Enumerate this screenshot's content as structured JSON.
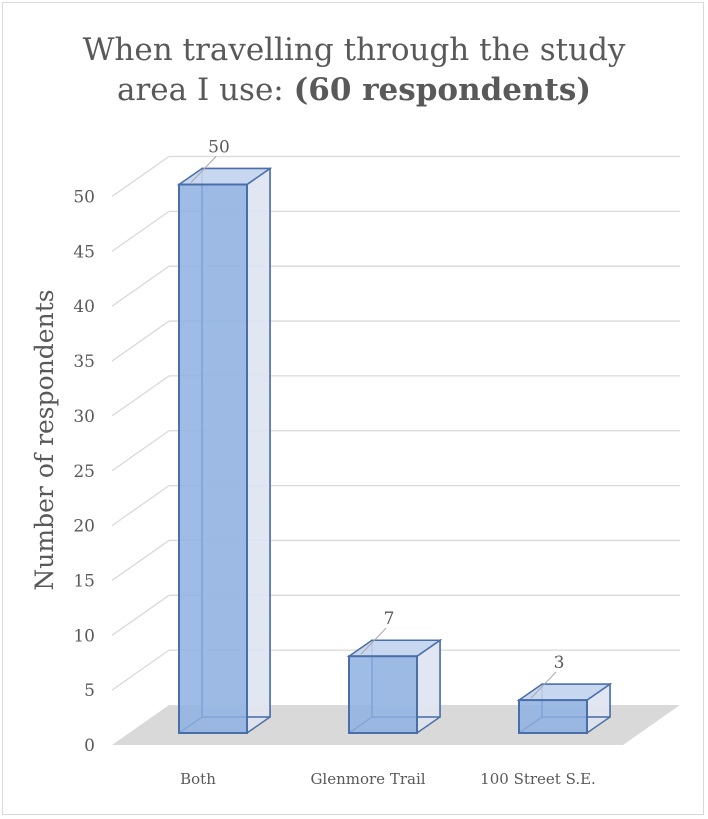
{
  "chart_data": {
    "type": "bar",
    "title_line1": "When travelling through the study",
    "title_line2_plain": "area I use: ",
    "title_line2_bold": "(60 respondents)",
    "xlabel": "",
    "ylabel": "Number of respondents",
    "categories": [
      "Both",
      "Glenmore Trail",
      "100 Street S.E."
    ],
    "values": [
      50,
      7,
      3
    ],
    "ylim": [
      0,
      50
    ],
    "yticks": [
      0,
      5,
      10,
      15,
      20,
      25,
      30,
      35,
      40,
      45,
      50
    ],
    "grid": true,
    "three_d": true,
    "bar_color": "#8db0e0",
    "bar_edge": "#4a6fa8"
  }
}
